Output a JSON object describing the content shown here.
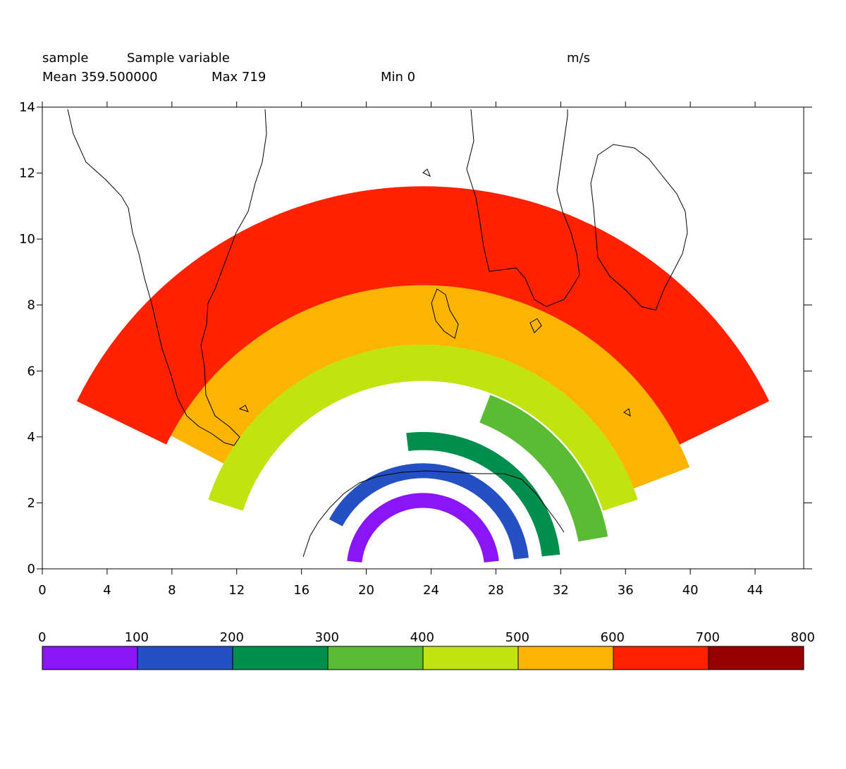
{
  "header": {
    "var_name": "sample",
    "long_name": "Sample variable",
    "units": "m/s",
    "mean": "Mean 359.500000",
    "max": "Max 719",
    "min": "Min 0"
  },
  "chart_data": {
    "type": "heatmap",
    "title": "",
    "xlabel": "",
    "ylabel": "",
    "xlim": [
      0,
      47
    ],
    "ylim": [
      0,
      14
    ],
    "x_ticks": [
      "0",
      "4",
      "8",
      "12",
      "16",
      "20",
      "24",
      "28",
      "32",
      "36",
      "40",
      "44"
    ],
    "y_ticks": [
      "0",
      "2",
      "4",
      "6",
      "8",
      "10",
      "12",
      "14"
    ],
    "x_tick_values": [
      0,
      4,
      8,
      12,
      16,
      20,
      24,
      28,
      32,
      36,
      40,
      44
    ],
    "y_tick_values": [
      0,
      2,
      4,
      6,
      8,
      10,
      12,
      14
    ],
    "center": [
      23.5,
      0
    ],
    "note_shape": "concentric semi-annular bands centered at x=23.5, y=0",
    "bands": [
      {
        "range": "0-100",
        "inner_radius": 1.85,
        "outer_radius": 2.3,
        "start_deg": 6,
        "end_deg": 174,
        "color": "#8a16f7"
      },
      {
        "range": "100-200",
        "inner_radius": 2.75,
        "outer_radius": 3.2,
        "start_deg": 6,
        "end_deg": 152,
        "color": "#2450c4"
      },
      {
        "range": "200-300",
        "inner_radius": 3.6,
        "outer_radius": 4.15,
        "start_deg": 6,
        "end_deg": 97,
        "color": "#008e4e"
      },
      {
        "range": "300-400",
        "inner_radius": 4.75,
        "outer_radius": 5.65,
        "start_deg": 10,
        "end_deg": 69,
        "color": "#5abc34"
      },
      {
        "range": "400-500",
        "inner_radius": 5.7,
        "outer_radius": 6.8,
        "start_deg": 18,
        "end_deg": 162,
        "color": "#c1e310"
      },
      {
        "range": "500-600",
        "inner_radius": 6.8,
        "outer_radius": 8.6,
        "start_deg": 21,
        "end_deg": 152,
        "color": "#fbb400"
      },
      {
        "range": "600-700",
        "inner_radius": 8.6,
        "outer_radius": 11.6,
        "start_deg": 26,
        "end_deg": 154,
        "color": "#ff2200"
      }
    ],
    "colorbar": {
      "labels": [
        "0",
        "100",
        "200",
        "300",
        "400",
        "500",
        "600",
        "700",
        "800"
      ],
      "colors": [
        "#8a16f7",
        "#2450c4",
        "#008e4e",
        "#5abc34",
        "#c1e310",
        "#fbb400",
        "#ff2200",
        "#980000"
      ]
    }
  }
}
